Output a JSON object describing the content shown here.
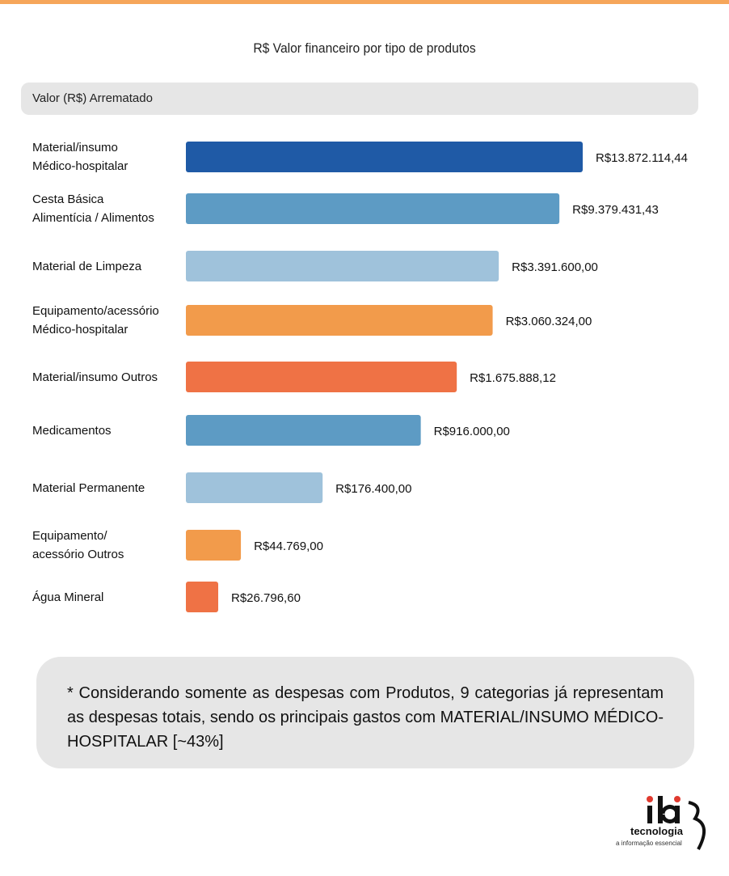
{
  "chart_data": {
    "type": "bar",
    "orientation": "horizontal",
    "title": "R$ Valor financeiro por tipo de produtos",
    "series_header": "Valor (R$) Arrematado",
    "categories": [
      "Material/insumo\nMédico-hospitalar",
      "Cesta Básica\nAlimentícia / Alimentos",
      "Material de Limpeza",
      "Equipamento/acessório\nMédico-hospitalar",
      "Material/insumo Outros",
      "Medicamentos",
      "Material Permanente",
      "Equipamento/\nacessório Outros",
      "Água Mineral"
    ],
    "values": [
      13872114.44,
      9379431.43,
      3391600.0,
      3060324.0,
      1675888.12,
      916000.0,
      176400.0,
      44769.0,
      26796.6
    ],
    "value_labels": [
      "R$13.872.114,44",
      "R$9.379.431,43",
      "R$3.391.600,00",
      "R$3.060.324,00",
      "R$1.675.888,12",
      "R$916.000,00",
      "R$176.400,00",
      "R$44.769,00",
      "R$26.796,60"
    ],
    "colors": [
      "#1f5aa6",
      "#5d9bc4",
      "#9fc2db",
      "#f29b4b",
      "#ef7245",
      "#5d9bc4",
      "#9fc2db",
      "#f29b4b",
      "#ef7245"
    ],
    "scale": "log",
    "grid": false,
    "legend": "none"
  },
  "note": "* Considerando somente as despesas com Produtos, 9 categorias já representam as despesas totais, sendo os principais gastos com MATERIAL/INSUMO MÉDICO-HOSPITALAR [~43%]",
  "logo": {
    "name": "ibi",
    "subtitle": "tecnologia",
    "tagline": "a informação essencial",
    "colors": {
      "dot": "#e03a2f",
      "text": "#111111"
    }
  }
}
